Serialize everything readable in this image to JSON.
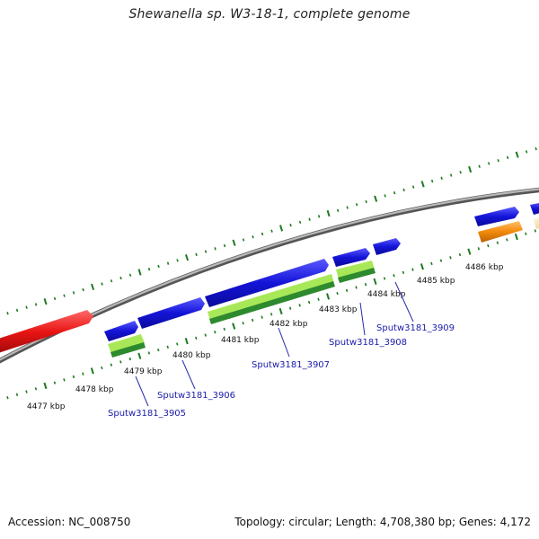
{
  "title": "Shewanella sp. W3-18-1, complete genome",
  "footer": {
    "accession": "Accession: NC_008750",
    "summary": "Topology: circular; Length: 4,708,380 bp; Genes: 4,172"
  },
  "colors": {
    "backbone": "#8a8a8a",
    "tick": "#1e7a1e",
    "forward_cds": "#1414d8",
    "reverse_cds": "#e81414",
    "rna_light": "#a8e858",
    "rna_dark": "#2e8a2e",
    "misc_feature": "#f28a0a",
    "pseudo_feature": "#f2eaa8",
    "label": "#1a1aaa"
  },
  "ruler": {
    "unit": "kbp",
    "labels": [
      "4477 kbp",
      "4478 kbp",
      "4479 kbp",
      "4480 kbp",
      "4481 kbp",
      "4482 kbp",
      "4483 kbp",
      "4484 kbp",
      "4485 kbp",
      "4486 kbp"
    ]
  },
  "gene_labels": [
    "Sputw3181_3905",
    "Sputw3181_3906",
    "Sputw3181_3907",
    "Sputw3181_3908",
    "Sputw3181_3909"
  ]
}
